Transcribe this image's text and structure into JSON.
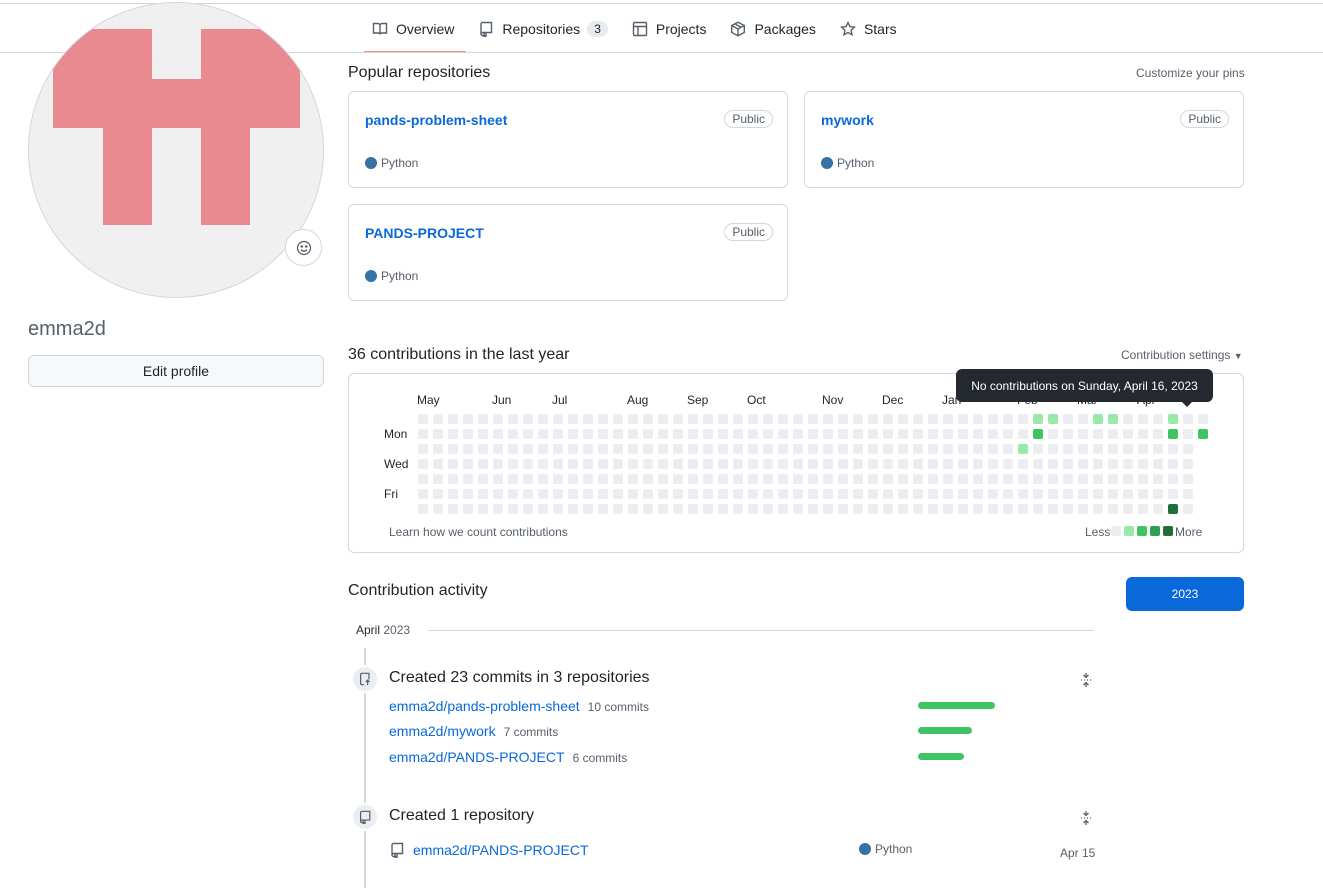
{
  "nav": {
    "tabs": [
      {
        "label": "Overview",
        "icon": "book-icon",
        "selected": true
      },
      {
        "label": "Repositories",
        "icon": "repo-icon",
        "count": "3"
      },
      {
        "label": "Projects",
        "icon": "table-icon"
      },
      {
        "label": "Packages",
        "icon": "package-icon"
      },
      {
        "label": "Stars",
        "icon": "star-icon"
      }
    ]
  },
  "profile": {
    "username": "emma2d",
    "edit_label": "Edit profile",
    "avatar_color": "#e88a90",
    "avatar_bg": "#f0f0f0"
  },
  "popular": {
    "title": "Popular repositories",
    "customize": "Customize your pins",
    "pins": [
      {
        "name": "pands-problem-sheet",
        "visibility": "Public",
        "language": "Python"
      },
      {
        "name": "mywork",
        "visibility": "Public",
        "language": "Python"
      },
      {
        "name": "PANDS-PROJECT",
        "visibility": "Public",
        "language": "Python"
      }
    ],
    "language_color": "#3572A5"
  },
  "contributions": {
    "title": "36 contributions in the last year",
    "settings": "Contribution settings",
    "months": [
      "May",
      "Jun",
      "Jul",
      "Aug",
      "Sep",
      "Oct",
      "Nov",
      "Dec",
      "Jan",
      "Feb",
      "Mar",
      "Apr"
    ],
    "days": [
      "Mon",
      "Wed",
      "Fri"
    ],
    "learn_link": "Learn how we count contributions",
    "less": "Less",
    "more": "More",
    "tooltip": "No contributions on Sunday, April 16, 2023",
    "level_colors": [
      "#ebedf0",
      "#9be9a8",
      "#40c463",
      "#30a14e",
      "#216e39"
    ],
    "active_cells": [
      {
        "week": 41,
        "day": 0,
        "level": 1
      },
      {
        "week": 42,
        "day": 0,
        "level": 1
      },
      {
        "week": 45,
        "day": 0,
        "level": 1
      },
      {
        "week": 46,
        "day": 0,
        "level": 1
      },
      {
        "week": 50,
        "day": 0,
        "level": 1
      },
      {
        "week": 41,
        "day": 1,
        "level": 2
      },
      {
        "week": 50,
        "day": 1,
        "level": 2
      },
      {
        "week": 52,
        "day": 1,
        "level": 2
      },
      {
        "week": 40,
        "day": 2,
        "level": 1
      },
      {
        "week": 50,
        "day": 6,
        "level": 4
      }
    ]
  },
  "activity": {
    "title": "Contribution activity",
    "year": "2023",
    "month": "April",
    "month_year": "2023",
    "commits_title": "Created 23 commits in 3 repositories",
    "commit_repos": [
      {
        "name": "emma2d/pands-problem-sheet",
        "count": "10 commits",
        "value": 10
      },
      {
        "name": "emma2d/mywork",
        "count": "7 commits",
        "value": 7
      },
      {
        "name": "emma2d/PANDS-PROJECT",
        "count": "6 commits",
        "value": 6
      }
    ],
    "created_title": "Created 1 repository",
    "created_repo": {
      "name": "emma2d/PANDS-PROJECT",
      "language": "Python",
      "date": "Apr 15"
    }
  }
}
